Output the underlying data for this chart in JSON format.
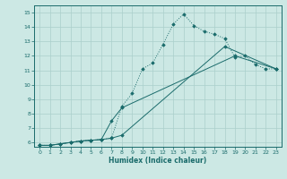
{
  "xlabel": "Humidex (Indice chaleur)",
  "bg_color": "#cce8e4",
  "line_color": "#1a6b6b",
  "grid_color": "#aacfcb",
  "xlim": [
    -0.5,
    23.5
  ],
  "ylim": [
    5.7,
    15.5
  ],
  "xticks": [
    0,
    1,
    2,
    3,
    4,
    5,
    6,
    7,
    8,
    9,
    10,
    11,
    12,
    13,
    14,
    15,
    16,
    17,
    18,
    19,
    20,
    21,
    22,
    23
  ],
  "yticks": [
    6,
    7,
    8,
    9,
    10,
    11,
    12,
    13,
    14,
    15
  ],
  "line1_x": [
    0,
    1,
    2,
    3,
    4,
    5,
    6,
    7,
    8,
    9,
    10,
    11,
    12,
    13,
    14,
    15,
    16,
    17,
    18,
    19,
    20,
    21,
    22,
    23
  ],
  "line1_y": [
    5.8,
    5.8,
    5.9,
    6.0,
    6.1,
    6.15,
    6.2,
    6.3,
    8.5,
    9.4,
    11.1,
    11.5,
    12.8,
    14.2,
    14.9,
    14.1,
    13.7,
    13.5,
    13.2,
    11.9,
    12.0,
    11.4,
    11.1,
    11.1
  ],
  "line2_x": [
    0,
    1,
    2,
    3,
    4,
    5,
    6,
    7,
    8,
    19,
    23
  ],
  "line2_y": [
    5.8,
    5.8,
    5.9,
    6.0,
    6.1,
    6.15,
    6.2,
    7.5,
    8.4,
    12.0,
    11.1
  ],
  "line3_x": [
    0,
    1,
    2,
    3,
    4,
    5,
    6,
    7,
    8,
    18,
    23
  ],
  "line3_y": [
    5.8,
    5.8,
    5.9,
    6.0,
    6.1,
    6.15,
    6.2,
    6.3,
    6.5,
    12.65,
    11.1
  ]
}
